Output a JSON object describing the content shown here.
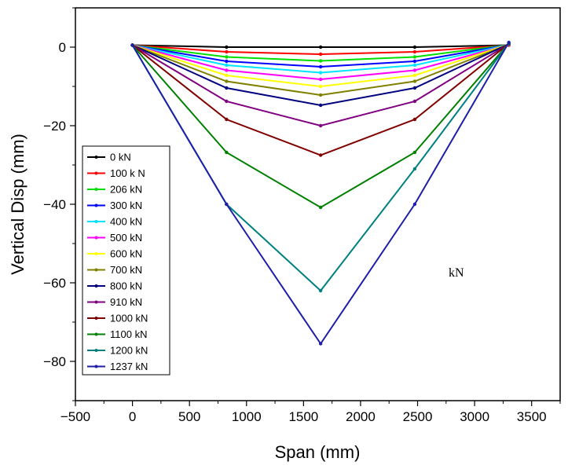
{
  "chart_data": {
    "type": "line",
    "title": "",
    "xlabel": "Span (mm)",
    "ylabel": "Vertical Disp (mm)",
    "xlim": [
      -500,
      3750
    ],
    "ylim": [
      -90,
      10
    ],
    "x_ticks": [
      -500,
      0,
      500,
      1000,
      1500,
      2000,
      2500,
      3000,
      3500
    ],
    "x_tick_labels": [
      "−500",
      "0",
      "500",
      "1000",
      "1500",
      "2000",
      "2500",
      "3000",
      "3500"
    ],
    "y_ticks": [
      0,
      -20,
      -40,
      -60,
      -80
    ],
    "y_tick_labels": [
      "0",
      "−20",
      "−40",
      "−60",
      "−80"
    ],
    "x": [
      0,
      825,
      1650,
      2475,
      3300
    ],
    "grid": false,
    "legend_position": "left-lower",
    "annotation": "kN",
    "series": [
      {
        "name": "0 kN",
        "color": "#000000",
        "values": [
          0.5,
          0,
          0,
          0,
          0.5
        ]
      },
      {
        "name": "100 k N",
        "color": "#ff0000",
        "values": [
          0.5,
          -1.2,
          -1.8,
          -1.2,
          0.5
        ]
      },
      {
        "name": "206 kN",
        "color": "#00dd00",
        "values": [
          0.5,
          -2.5,
          -3.5,
          -2.5,
          0.6
        ]
      },
      {
        "name": "300 kN",
        "color": "#0000ff",
        "values": [
          0.5,
          -3.6,
          -5.0,
          -3.6,
          0.6
        ]
      },
      {
        "name": "400 kN",
        "color": "#00e5ff",
        "values": [
          0.5,
          -4.6,
          -6.5,
          -4.6,
          0.6
        ]
      },
      {
        "name": "500 kN",
        "color": "#ff00ff",
        "values": [
          0.5,
          -5.9,
          -8.2,
          -5.9,
          0.6
        ]
      },
      {
        "name": "600 kN",
        "color": "#ffff00",
        "values": [
          0.5,
          -7.2,
          -10.0,
          -7.2,
          0.7
        ]
      },
      {
        "name": "700 kN",
        "color": "#808000",
        "values": [
          0.5,
          -8.7,
          -12.2,
          -8.7,
          0.7
        ]
      },
      {
        "name": "800 kN",
        "color": "#000080",
        "values": [
          0.5,
          -10.4,
          -14.8,
          -10.4,
          0.8
        ]
      },
      {
        "name": "910 kN",
        "color": "#800080",
        "values": [
          0.5,
          -13.8,
          -20.0,
          -13.8,
          0.8
        ]
      },
      {
        "name": "1000 kN",
        "color": "#800000",
        "values": [
          0.5,
          -18.4,
          -27.5,
          -18.4,
          0.9
        ]
      },
      {
        "name": "1100 kN",
        "color": "#008000",
        "values": [
          0.5,
          -26.8,
          -40.8,
          -26.8,
          1.0
        ]
      },
      {
        "name": "1200 kN",
        "color": "#008080",
        "values": [
          0.5,
          -40.0,
          -62.0,
          -31.0,
          1.0
        ]
      },
      {
        "name": "1237 kN",
        "color": "#1e1ea8",
        "values": [
          0.5,
          -40.0,
          -75.5,
          -40.0,
          1.2
        ]
      }
    ]
  }
}
